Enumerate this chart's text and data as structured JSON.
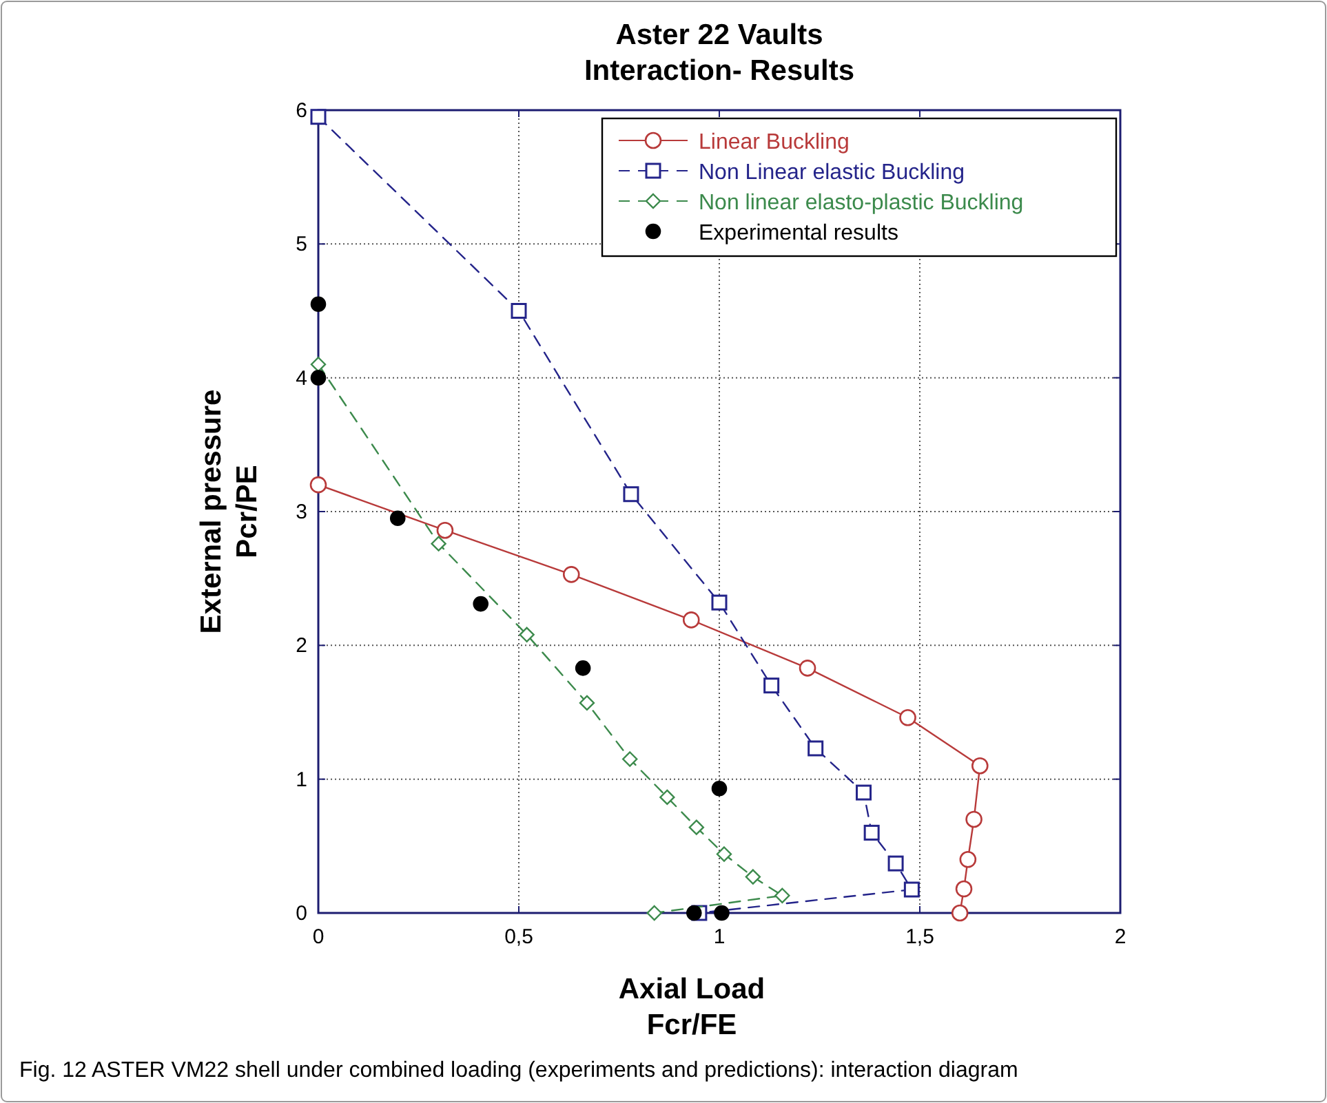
{
  "chart_data": {
    "type": "line",
    "title": "Aster 22 Vaults\nInteraction- Results",
    "xlabel": "Axial Load\nFcr/FE",
    "ylabel": "External pressure\nPcr/PE",
    "annotations": [
      "Fig. 12  ASTER VM22 shell under combined loading (experiments and predictions): interaction diagram"
    ],
    "xlim": [
      0,
      2
    ],
    "ylim": [
      0,
      6
    ],
    "xticks": [
      0,
      {
        "value": 0.5,
        "label": "0,5"
      },
      1,
      {
        "value": 1.5,
        "label": "1,5"
      },
      2
    ],
    "yticks": [
      0,
      1,
      2,
      3,
      4,
      5,
      6
    ],
    "grid": true,
    "legend": "top right",
    "series": [
      {
        "name": "Linear Buckling",
        "color": "#b83a3a",
        "marker": "circle",
        "line_style": "solid",
        "x": [
          0,
          0.316,
          0.631,
          0.93,
          1.22,
          1.47,
          1.65,
          1.635,
          1.62,
          1.61,
          1.6
        ],
        "values": [
          3.2,
          2.86,
          2.53,
          2.19,
          1.83,
          1.46,
          1.1,
          0.7,
          0.4,
          0.18,
          0
        ]
      },
      {
        "name": "Non Linear elastic Buckling",
        "color": "#24248a",
        "marker": "square",
        "line_style": "dashed",
        "x": [
          0,
          0.5,
          0.78,
          1.0,
          1.13,
          1.24,
          1.36,
          1.38,
          1.44,
          1.48,
          0.95
        ],
        "values": [
          5.95,
          4.5,
          3.13,
          2.32,
          1.7,
          1.23,
          0.9,
          0.6,
          0.37,
          0.175,
          0
        ]
      },
      {
        "name": "Non linear elasto-plastic Buckling",
        "color": "#3c8a4c",
        "marker": "diamond",
        "line_style": "dashed",
        "x": [
          0,
          0.3,
          0.52,
          0.67,
          0.777,
          0.87,
          0.943,
          1.012,
          1.084,
          1.157,
          0.838
        ],
        "values": [
          4.1,
          2.76,
          2.08,
          1.57,
          1.15,
          0.865,
          0.64,
          0.44,
          0.27,
          0.13,
          0
        ]
      },
      {
        "name": "Experimental results",
        "type": "scatter",
        "color": "#000000",
        "marker": "circle",
        "x": [
          0,
          0,
          0.198,
          0.405,
          0.66,
          1.0,
          0.937,
          1.006
        ],
        "values": [
          4.55,
          4.0,
          2.95,
          2.31,
          1.83,
          0.93,
          0,
          0
        ]
      }
    ]
  }
}
